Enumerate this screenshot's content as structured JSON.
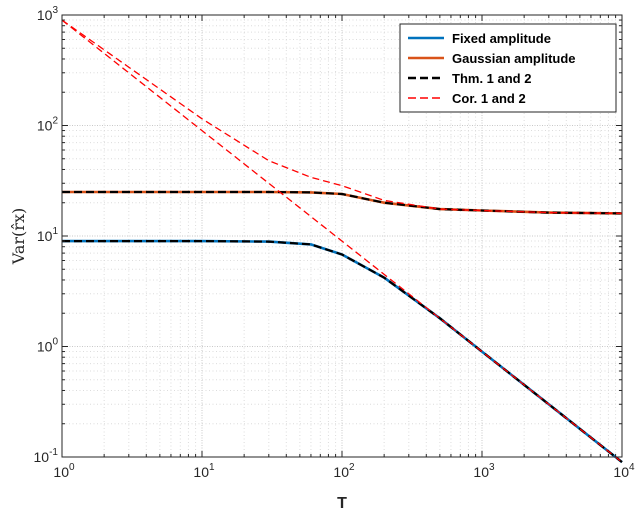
{
  "chart_data": {
    "type": "line",
    "title": "",
    "xlabel": "T",
    "ylabel": "Var(r̂x)",
    "x_scale": "log",
    "y_scale": "log",
    "xlim": [
      1,
      10000
    ],
    "ylim": [
      0.1,
      1000
    ],
    "grid": true,
    "legend_position": "top-right",
    "x_ticks": [
      {
        "base": "10",
        "exp": "0",
        "value": 1
      },
      {
        "base": "10",
        "exp": "1",
        "value": 10
      },
      {
        "base": "10",
        "exp": "2",
        "value": 100
      },
      {
        "base": "10",
        "exp": "3",
        "value": 1000
      },
      {
        "base": "10",
        "exp": "4",
        "value": 10000
      }
    ],
    "y_ticks": [
      {
        "base": "10",
        "exp": "-1",
        "value": 0.1
      },
      {
        "base": "10",
        "exp": "0",
        "value": 1
      },
      {
        "base": "10",
        "exp": "1",
        "value": 10
      },
      {
        "base": "10",
        "exp": "2",
        "value": 100
      },
      {
        "base": "10",
        "exp": "3",
        "value": 1000
      }
    ],
    "series": [
      {
        "name": "Fixed amplitude",
        "color": "#0072BD",
        "style": "solid",
        "x": [
          1,
          10,
          30,
          60,
          100,
          200,
          500,
          1000,
          3000,
          10000
        ],
        "y": [
          9.0,
          9.0,
          8.9,
          8.4,
          6.8,
          4.2,
          1.8,
          0.9,
          0.3,
          0.09
        ]
      },
      {
        "name": "Gaussian amplitude",
        "color": "#D95319",
        "style": "solid",
        "x": [
          1,
          10,
          30,
          60,
          100,
          200,
          500,
          1000,
          3000,
          10000
        ],
        "y": [
          25,
          25,
          25,
          24.8,
          24,
          20,
          17.5,
          17,
          16.3,
          16
        ]
      },
      {
        "name": "Thm. 1 and 2",
        "color": "#000000",
        "style": "dashed",
        "x": [
          1,
          10,
          30,
          60,
          100,
          200,
          500,
          1000,
          3000,
          10000,
          1,
          10,
          30,
          60,
          100,
          200,
          500,
          1000,
          3000,
          10000
        ],
        "y": [
          9.0,
          9.0,
          8.9,
          8.4,
          6.8,
          4.2,
          1.8,
          0.9,
          0.3,
          0.09,
          25,
          25,
          25,
          24.8,
          24,
          20,
          17.5,
          17,
          16.3,
          16
        ]
      },
      {
        "name": "Cor. 1 and 2",
        "color": "#FF0000",
        "style": "dashed",
        "x": [
          1,
          10,
          100,
          1000,
          10000,
          1,
          10,
          30,
          60,
          100,
          200,
          500,
          1000,
          3000,
          10000
        ],
        "y": [
          900,
          90,
          9,
          0.9,
          0.09,
          900,
          115,
          48,
          34,
          28.5,
          21,
          17.5,
          17,
          16.3,
          16
        ]
      }
    ]
  }
}
